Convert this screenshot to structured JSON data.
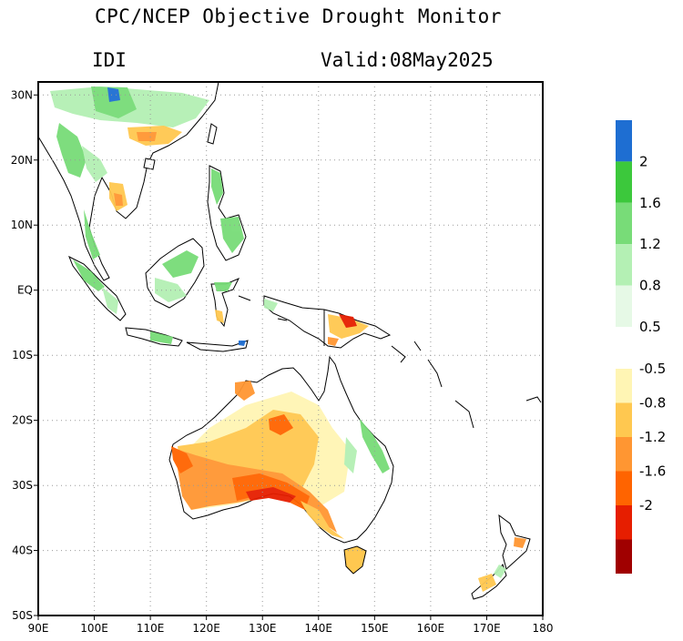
{
  "header": {
    "title": "CPC/NCEP Objective Drought Monitor",
    "index_label": "IDI",
    "valid_label": "Valid:08May2025"
  },
  "map": {
    "lon_range": [
      90,
      180
    ],
    "lat_range": [
      -50,
      32
    ],
    "lon_ticks": [
      {
        "value": 90,
        "label": "90E"
      },
      {
        "value": 100,
        "label": "100E"
      },
      {
        "value": 110,
        "label": "110E"
      },
      {
        "value": 120,
        "label": "120E"
      },
      {
        "value": 130,
        "label": "130E"
      },
      {
        "value": 140,
        "label": "140E"
      },
      {
        "value": 150,
        "label": "150E"
      },
      {
        "value": 160,
        "label": "160E"
      },
      {
        "value": 170,
        "label": "170E"
      },
      {
        "value": 180,
        "label": "180"
      }
    ],
    "lat_ticks": [
      {
        "value": 30,
        "label": "30N"
      },
      {
        "value": 20,
        "label": "20N"
      },
      {
        "value": 10,
        "label": "10N"
      },
      {
        "value": 0,
        "label": "EQ"
      },
      {
        "value": -10,
        "label": "10S"
      },
      {
        "value": -20,
        "label": "20S"
      },
      {
        "value": -30,
        "label": "30S"
      },
      {
        "value": -40,
        "label": "40S"
      },
      {
        "value": -50,
        "label": "50S"
      }
    ],
    "grid": "dotted"
  },
  "legend": {
    "wet_colors": [
      "#e6f9e6",
      "#b4f0b4",
      "#78dc78",
      "#3cc83c",
      "#1e6ed2"
    ],
    "wet_labels": [
      "0.5",
      "0.8",
      "1.2",
      "1.6",
      "2"
    ],
    "dry_colors": [
      "#fff5b4",
      "#ffc850",
      "#ff9632",
      "#ff6400",
      "#e61e00",
      "#a00000"
    ],
    "dry_labels": [
      "-0.5",
      "-0.8",
      "-1.2",
      "-1.6",
      "-2"
    ]
  }
}
